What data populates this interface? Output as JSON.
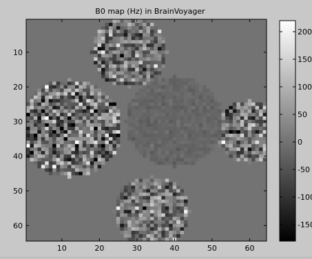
{
  "chart_data": {
    "type": "heatmap",
    "title": "B0 map (Hz) in BrainVoyager",
    "xlabel": "",
    "ylabel": "",
    "x_ticks": [
      10,
      20,
      30,
      40,
      50,
      60
    ],
    "y_ticks": [
      10,
      20,
      30,
      40,
      50,
      60
    ],
    "xlim": [
      0.5,
      64.5
    ],
    "ylim": [
      0.5,
      64.5
    ],
    "y_axis_reversed": true,
    "grid_size": [
      64,
      64
    ],
    "colormap": "gray",
    "clim": [
      -180,
      220
    ],
    "colorbar_ticks": [
      -150,
      -100,
      -50,
      0,
      50,
      100,
      150,
      200
    ],
    "background_value": 0,
    "regions": [
      {
        "name": "central low-variance region",
        "center_xy": [
          40,
          30
        ],
        "radius": 13,
        "mean_value": -20,
        "noise_std": 8
      },
      {
        "name": "left noisy region",
        "center_xy": [
          12,
          32
        ],
        "radius": 14,
        "mean_value": 0,
        "noise_std": 90
      },
      {
        "name": "right noisy region",
        "center_xy": [
          60,
          33
        ],
        "radius": 9,
        "mean_value": 0,
        "noise_std": 80
      },
      {
        "name": "upper noisy band",
        "center_xy": [
          28,
          10
        ],
        "radius": 10,
        "mean_value": 0,
        "noise_std": 70
      },
      {
        "name": "lower noisy band",
        "center_xy": [
          34,
          56
        ],
        "radius": 10,
        "mean_value": 10,
        "noise_std": 70
      }
    ]
  }
}
